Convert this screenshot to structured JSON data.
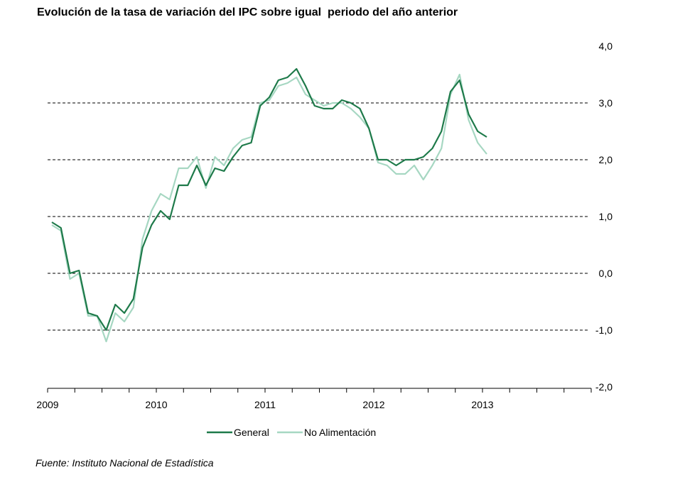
{
  "source": "Fuente: Instituto Nacional de Estadística",
  "chart_data": {
    "type": "line",
    "title": "Evolución de la tasa de variación del IPC sobre igual  periodo del año anterior",
    "xlabel": "",
    "ylabel": "",
    "x_tick_labels": [
      "2009",
      "2010",
      "2011",
      "2012",
      "2013"
    ],
    "x_months_start": "2009-01",
    "x_axis_range": [
      "2009-01",
      "2013-12"
    ],
    "y_tick_labels": [
      "-2,0",
      "-1,0",
      "0,0",
      "1,0",
      "2,0",
      "3,0",
      "4,0"
    ],
    "ylim": [
      -2,
      4
    ],
    "y_axis_position": "right",
    "grid": "dashed horizontal at 3, 2, 1, 0, -1",
    "legend_position": "bottom-center",
    "series": [
      {
        "name": "General",
        "color": "#1e7a4a",
        "values": [
          0.9,
          0.8,
          0.0,
          0.05,
          -0.7,
          -0.75,
          -1.0,
          -0.55,
          -0.7,
          -0.45,
          0.45,
          0.85,
          1.1,
          0.95,
          1.55,
          1.55,
          1.9,
          1.55,
          1.85,
          1.8,
          2.05,
          2.25,
          2.3,
          2.95,
          3.1,
          3.4,
          3.45,
          3.6,
          3.3,
          2.95,
          2.9,
          2.9,
          3.05,
          3.0,
          2.9,
          2.55,
          2.0,
          2.0,
          1.9,
          2.0,
          2.0,
          2.05,
          2.2,
          2.5,
          3.2,
          3.4,
          2.8,
          2.5,
          2.4
        ]
      },
      {
        "name": "No Alimentación",
        "color": "#a6d7c2",
        "values": [
          0.85,
          0.75,
          -0.1,
          0.0,
          -0.75,
          -0.75,
          -1.2,
          -0.7,
          -0.85,
          -0.6,
          0.6,
          1.1,
          1.4,
          1.3,
          1.85,
          1.85,
          2.05,
          1.5,
          2.05,
          1.9,
          2.2,
          2.35,
          2.4,
          3.0,
          3.05,
          3.3,
          3.35,
          3.45,
          3.15,
          3.05,
          2.95,
          3.0,
          3.0,
          2.9,
          2.75,
          2.55,
          1.95,
          1.9,
          1.75,
          1.75,
          1.9,
          1.65,
          1.9,
          2.2,
          3.15,
          3.5,
          2.7,
          2.3,
          2.1
        ]
      }
    ]
  }
}
